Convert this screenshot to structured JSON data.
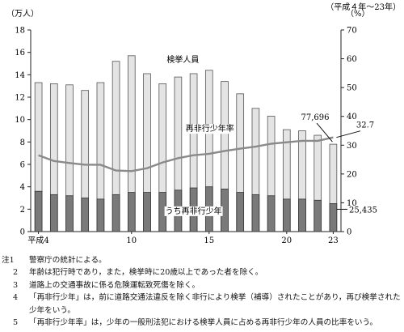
{
  "chart_data": {
    "type": "bar",
    "period_label": "（平成４年～23年）",
    "y_left_unit": "（万人）",
    "y_right_unit": "（%）",
    "y_left_ticks": [
      "0",
      "2",
      "4",
      "6",
      "8",
      "10",
      "12",
      "14",
      "16",
      "18"
    ],
    "y_right_ticks": [
      "0",
      "10",
      "20",
      "30",
      "40",
      "50",
      "60",
      "70"
    ],
    "ylim_left": [
      0,
      18
    ],
    "ylim_right": [
      0,
      70
    ],
    "categories": [
      "4",
      "5",
      "6",
      "7",
      "8",
      "9",
      "10",
      "11",
      "12",
      "13",
      "14",
      "15",
      "16",
      "17",
      "18",
      "19",
      "20",
      "21",
      "22",
      "23"
    ],
    "x_tick_labels": [
      {
        "label": "平成4",
        "index": 0
      },
      {
        "label": "10",
        "index": 6
      },
      {
        "label": "15",
        "index": 11
      },
      {
        "label": "20",
        "index": 16
      },
      {
        "label": "23",
        "index": 19
      }
    ],
    "series": [
      {
        "name": "検挙人員",
        "axis": "left",
        "type": "bar",
        "color": "#e4e4e4",
        "values": [
          13.3,
          13.2,
          13.1,
          12.6,
          13.3,
          15.2,
          15.7,
          14.1,
          13.2,
          13.8,
          14.1,
          14.4,
          13.4,
          12.3,
          11.0,
          10.3,
          9.1,
          9.0,
          8.6,
          7.8
        ]
      },
      {
        "name": "うち再非行少年",
        "axis": "left",
        "type": "bar",
        "color": "#7a7a7a",
        "values": [
          3.6,
          3.3,
          3.2,
          3.0,
          2.9,
          3.3,
          3.5,
          3.5,
          3.5,
          3.7,
          3.9,
          4.0,
          3.8,
          3.5,
          3.3,
          3.2,
          2.9,
          2.9,
          2.8,
          2.5
        ]
      },
      {
        "name": "再非行少年率",
        "axis": "right",
        "type": "line",
        "color": "#8a8a8a",
        "values": [
          26.5,
          24.5,
          23.8,
          23.2,
          23.2,
          21.2,
          21.0,
          22.0,
          24.0,
          25.5,
          26.5,
          27.0,
          28.0,
          28.8,
          29.5,
          30.5,
          31.0,
          31.5,
          31.5,
          32.7
        ]
      }
    ],
    "annotations": {
      "total_last": "77,696",
      "rate_last": "32.7",
      "repeat_last": "25,435"
    },
    "grid": false,
    "legend": "inline labels"
  },
  "notes": [
    {
      "num": "注1",
      "text": "警察庁の統計による。"
    },
    {
      "num": "2",
      "text": "年齢は犯行時であり，また，検挙時に20歳以上であった者を除く。"
    },
    {
      "num": "3",
      "text": "道路上の交通事故に係る危険運転致死傷を除く。"
    },
    {
      "num": "4",
      "text": "「再非行少年」は，前に道路交通法違反を除く非行により検挙（補導）されたことがあり，再び検挙された少年をいう。"
    },
    {
      "num": "5",
      "text": "「再非行少年率」は，少年の一般刑法犯における検挙人員に占める再非行少年の人員の比率をいう。"
    }
  ]
}
